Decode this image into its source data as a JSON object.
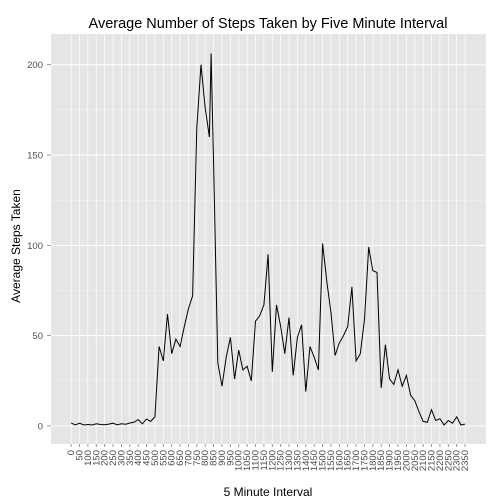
{
  "chart_data": {
    "type": "line",
    "title": "Average Number of Steps Taken by Five Minute Interval",
    "xlabel": "5 Minute Interval",
    "ylabel": "Average Steps Taken",
    "xlim": [
      -120,
      2475
    ],
    "ylim": [
      -10,
      217
    ],
    "y_ticks": [
      0,
      50,
      100,
      150,
      200
    ],
    "x_ticks": [
      "0",
      "50",
      "100",
      "150",
      "200",
      "250",
      "300",
      "350",
      "400",
      "450",
      "500",
      "550",
      "600",
      "650",
      "700",
      "750",
      "800",
      "850",
      "900",
      "950",
      "1000",
      "1050",
      "1100",
      "1150",
      "1200",
      "1250",
      "1300",
      "1350",
      "1400",
      "1450",
      "1500",
      "1550",
      "1600",
      "1650",
      "1700",
      "1750",
      "1800",
      "1850",
      "1900",
      "1950",
      "2000",
      "2050",
      "2100",
      "2150",
      "2200",
      "2250",
      "2300",
      "2350"
    ],
    "grid": true,
    "colors": {
      "panel": "#e5e5e5",
      "grid_major": "#ffffff",
      "grid_minor": "#f2f2f2",
      "line": "#000000"
    },
    "series": [
      {
        "x": [
          0,
          25,
          50,
          75,
          100,
          125,
          150,
          175,
          200,
          225,
          250,
          275,
          300,
          325,
          350,
          375,
          400,
          425,
          450,
          475,
          500,
          525,
          550,
          575,
          600,
          625,
          650,
          675,
          700,
          725,
          750,
          775,
          800,
          825,
          835,
          850,
          875,
          900,
          925,
          950,
          975,
          1000,
          1025,
          1050,
          1075,
          1100,
          1125,
          1150,
          1175,
          1200,
          1225,
          1250,
          1275,
          1300,
          1325,
          1350,
          1375,
          1400,
          1425,
          1450,
          1475,
          1500,
          1525,
          1550,
          1575,
          1600,
          1625,
          1650,
          1675,
          1700,
          1725,
          1750,
          1775,
          1800,
          1825,
          1850,
          1875,
          1900,
          1925,
          1950,
          1975,
          2000,
          2025,
          2050,
          2075,
          2100,
          2125,
          2150,
          2175,
          2200,
          2225,
          2250,
          2275,
          2300,
          2325,
          2350
        ],
        "y": [
          1.7,
          0.5,
          1.5,
          0.5,
          0.8,
          0.5,
          1.2,
          0.8,
          0.7,
          1.0,
          1.5,
          0.6,
          1.2,
          0.9,
          1.6,
          2.0,
          3.5,
          1.2,
          3.8,
          2.5,
          5.0,
          44.0,
          36.0,
          62.0,
          40.0,
          48.0,
          44.0,
          55.0,
          65.0,
          72.0,
          165.0,
          200.0,
          176.0,
          160.0,
          206.2,
          145.0,
          35.0,
          22.0,
          38.0,
          49.0,
          26.0,
          42.0,
          31.0,
          33.0,
          25.0,
          58.0,
          61.0,
          67.0,
          95.0,
          30.0,
          67.0,
          55.0,
          40.0,
          60.0,
          28.0,
          49.0,
          56.0,
          19.0,
          44.0,
          38.0,
          31.0,
          101.0,
          80.0,
          63.0,
          39.0,
          46.0,
          50.0,
          55.0,
          77.0,
          36.0,
          40.0,
          59.0,
          99.0,
          86.0,
          85.0,
          21.0,
          45.0,
          26.0,
          23.0,
          31.0,
          22.0,
          28.0,
          17.0,
          14.0,
          8.0,
          2.5,
          2.0,
          9.0,
          3.0,
          4.0,
          0.5,
          3.0,
          1.5,
          5.0,
          0.5,
          1.0
        ]
      }
    ]
  }
}
